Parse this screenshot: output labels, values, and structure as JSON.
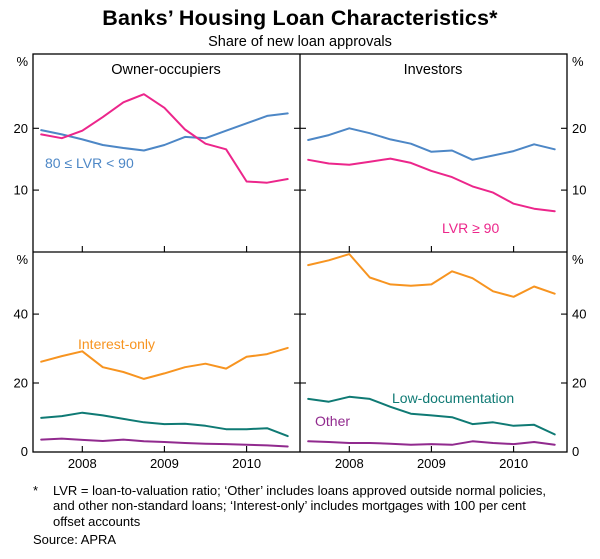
{
  "title": "Banks’ Housing Loan Characteristics*",
  "subtitle": "Share of new loan approvals",
  "footnote": {
    "marker": "*",
    "text": "LVR = loan-to-valuation ratio; ‘Other’ includes loans approved outside normal policies, and other non-standard loans; ‘Interest-only’ includes mortgages with 100 per cent offset accounts",
    "source": "Source: APRA"
  },
  "chart_data": {
    "type": "line",
    "title": "Banks’ Housing Loan Characteristics",
    "subtitle": "Share of new loan approvals",
    "x_range": [
      2007.4,
      2010.65
    ],
    "x_years": [
      2007.5,
      2007.75,
      2008.0,
      2008.25,
      2008.5,
      2008.75,
      2009.0,
      2009.25,
      2009.5,
      2009.75,
      2010.0,
      2010.25,
      2010.5
    ],
    "x_ticks": [
      2008,
      2009,
      2010
    ],
    "grid": false,
    "legend_position": "inline-labels",
    "panels": [
      {
        "id": "owner-occupiers-lvr",
        "title": "Owner-occupiers",
        "unit": "%",
        "ylim": [
          0,
          32
        ],
        "yticks": [
          10,
          20
        ],
        "ylabel0": false,
        "series": [
          {
            "name": "80 ≤ LVR < 90",
            "color": "#4d87c6",
            "values": [
              19.7,
              19.0,
              18.2,
              17.3,
              16.8,
              16.4,
              17.3,
              18.6,
              18.4,
              19.6,
              20.8,
              22.0,
              22.4
            ]
          },
          {
            "name": "LVR ≥ 90",
            "color": "#ec268b",
            "values": [
              19.0,
              18.4,
              19.6,
              21.8,
              24.2,
              25.5,
              23.3,
              19.8,
              17.5,
              16.6,
              11.4,
              11.2,
              11.8
            ]
          }
        ]
      },
      {
        "id": "investors-lvr",
        "title": "Investors",
        "unit": "%",
        "ylim": [
          0,
          32
        ],
        "yticks": [
          10,
          20
        ],
        "ylabel0": false,
        "series": [
          {
            "name": "80 ≤ LVR < 90",
            "color": "#4d87c6",
            "values": [
              18.1,
              18.9,
              20.0,
              19.2,
              18.2,
              17.5,
              16.2,
              16.4,
              14.9,
              15.6,
              16.3,
              17.4,
              16.6
            ]
          },
          {
            "name": "LVR ≥ 90",
            "color": "#ec268b",
            "values": [
              14.9,
              14.3,
              14.1,
              14.6,
              15.1,
              14.4,
              13.1,
              12.1,
              10.6,
              9.6,
              7.8,
              7.0,
              6.6
            ]
          }
        ]
      },
      {
        "id": "owner-occupiers-type",
        "title": "Owner-occupiers",
        "unit": "%",
        "ylim": [
          0,
          58
        ],
        "yticks": [
          20,
          40
        ],
        "ylabel0": true,
        "series": [
          {
            "name": "Interest-only",
            "color": "#f79420",
            "values": [
              26.2,
              27.8,
              29.2,
              24.6,
              23.2,
              21.2,
              22.8,
              24.6,
              25.6,
              24.2,
              27.6,
              28.4,
              30.2
            ]
          },
          {
            "name": "Low-documentation",
            "color": "#0f7a74",
            "values": [
              9.9,
              10.4,
              11.4,
              10.6,
              9.6,
              8.6,
              8.1,
              8.2,
              7.6,
              6.6,
              6.6,
              6.9,
              4.6
            ]
          },
          {
            "name": "Other",
            "color": "#912a8e",
            "values": [
              3.6,
              3.9,
              3.5,
              3.2,
              3.6,
              3.1,
              2.9,
              2.6,
              2.4,
              2.3,
              2.1,
              1.9,
              1.6
            ]
          }
        ]
      },
      {
        "id": "investors-type",
        "title": "Investors",
        "unit": "%",
        "ylim": [
          0,
          58
        ],
        "yticks": [
          20,
          40
        ],
        "ylabel0": true,
        "series": [
          {
            "name": "Interest-only",
            "color": "#f79420",
            "values": [
              54.2,
              55.6,
              57.4,
              50.6,
              48.6,
              48.2,
              48.6,
              52.4,
              50.4,
              46.6,
              45.0,
              48.0,
              45.9
            ]
          },
          {
            "name": "Low-documentation",
            "color": "#0f7a74",
            "values": [
              15.4,
              14.6,
              16.0,
              15.4,
              13.1,
              11.1,
              10.6,
              10.1,
              8.1,
              8.6,
              7.6,
              7.9,
              5.1
            ]
          },
          {
            "name": "Other",
            "color": "#912a8e",
            "values": [
              3.1,
              2.9,
              2.6,
              2.6,
              2.4,
              2.1,
              2.3,
              2.1,
              3.1,
              2.6,
              2.3,
              2.9,
              2.1
            ]
          }
        ]
      }
    ]
  }
}
